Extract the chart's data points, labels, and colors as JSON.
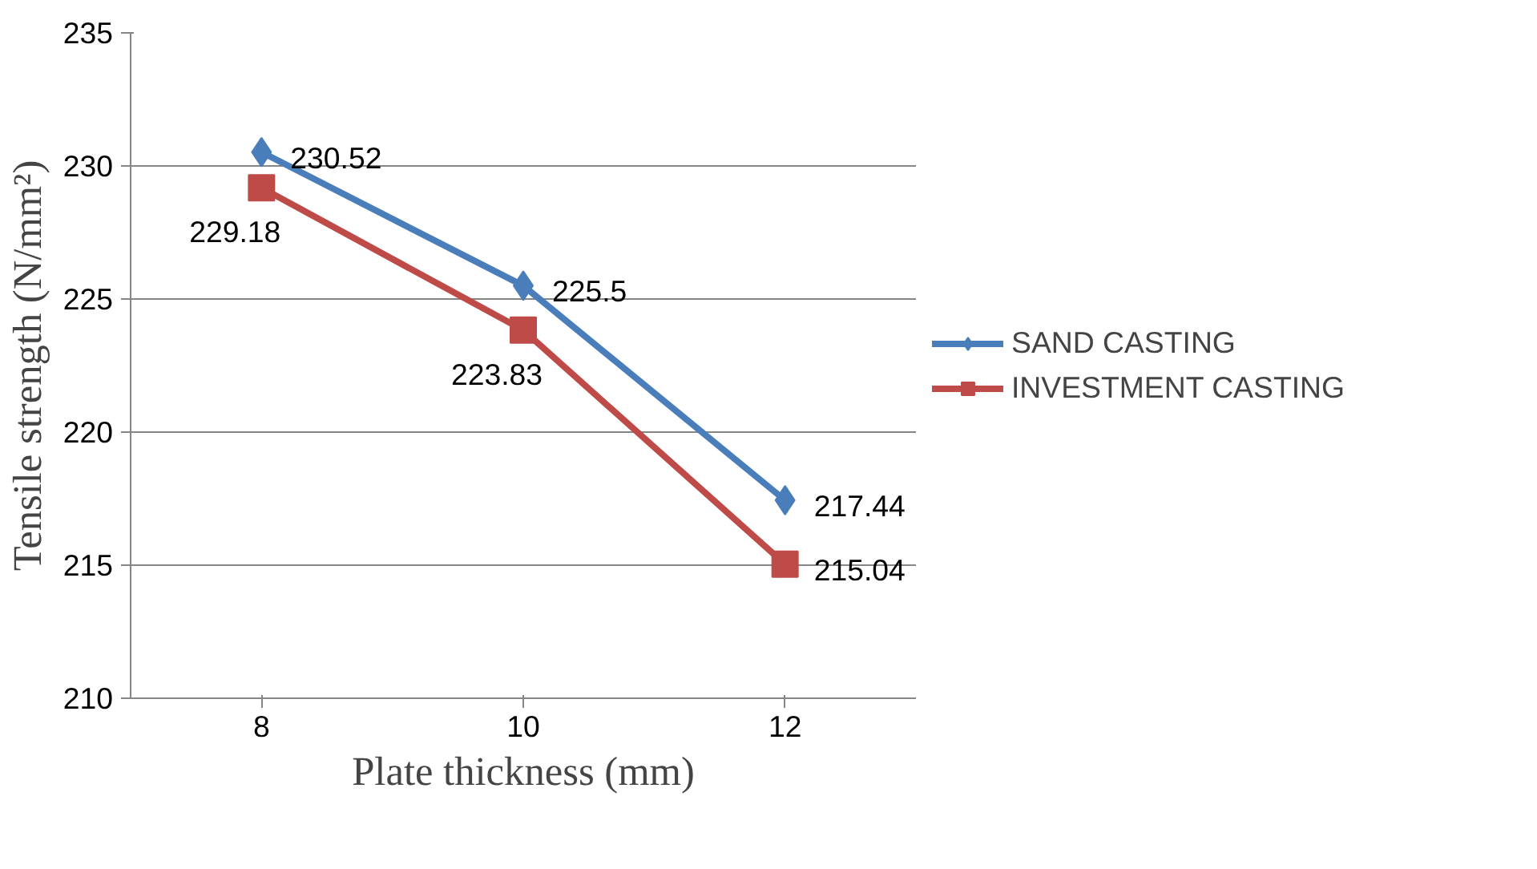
{
  "chart_data": {
    "type": "line",
    "xlabel": "Plate thickness (mm)",
    "ylabel": "Tensile strength (N/mm²)",
    "categories": [
      "8",
      "10",
      "12"
    ],
    "series": [
      {
        "name": "SAND CASTING",
        "color": "#4a7ebb",
        "values": [
          230.52,
          225.5,
          217.44
        ],
        "marker": "diamond"
      },
      {
        "name": "INVESTMENT CASTING",
        "color": "#be4b48",
        "values": [
          229.18,
          223.83,
          215.04
        ],
        "marker": "square"
      }
    ],
    "ylim": [
      210,
      235
    ],
    "yticks": [
      210,
      215,
      220,
      225,
      230,
      235
    ],
    "grid": "y",
    "legend": "right",
    "data_labels": true
  }
}
